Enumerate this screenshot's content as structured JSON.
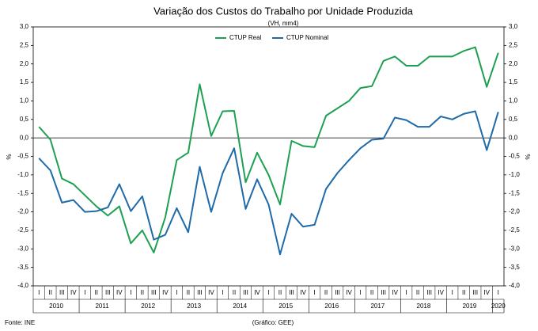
{
  "chart_data": {
    "type": "line",
    "title": "Variação dos Custos do Trabalho por Unidade Produzida",
    "subtitle": "(VH, mm4)",
    "y_label": "%",
    "y2_label": "%",
    "categories": [
      "I",
      "II",
      "III",
      "IV",
      "I",
      "II",
      "III",
      "IV",
      "I",
      "II",
      "III",
      "IV",
      "I",
      "II",
      "III",
      "IV",
      "I",
      "II",
      "III",
      "IV",
      "I",
      "II",
      "III",
      "IV",
      "I",
      "II",
      "III",
      "IV",
      "I",
      "II",
      "III",
      "IV",
      "I",
      "II",
      "III",
      "IV",
      "I",
      "II",
      "III",
      "IV",
      "I"
    ],
    "years": [
      "2010",
      "2011",
      "2012",
      "2013",
      "2014",
      "2015",
      "2016",
      "2017",
      "2018",
      "2019",
      "2020"
    ],
    "series": [
      {
        "name": "CTUP Real",
        "color": "#1ea052",
        "values": [
          0.3,
          -0.05,
          -1.1,
          -1.25,
          -1.55,
          -1.85,
          -2.1,
          -1.85,
          -2.85,
          -2.5,
          -3.1,
          -2.15,
          -0.6,
          -0.4,
          1.45,
          0.05,
          0.72,
          0.73,
          -1.2,
          -0.4,
          -1.0,
          -1.8,
          -0.08,
          -0.22,
          -0.25,
          0.6,
          0.8,
          1.0,
          1.35,
          1.4,
          2.08,
          2.2,
          1.95,
          1.95,
          2.2,
          2.2,
          2.2,
          2.35,
          2.45,
          1.38,
          2.3
        ]
      },
      {
        "name": "CTUP Nominal",
        "color": "#1f6aa8",
        "values": [
          -0.55,
          -0.88,
          -1.75,
          -1.68,
          -2.0,
          -1.98,
          -1.88,
          -1.25,
          -1.98,
          -1.58,
          -2.75,
          -2.62,
          -1.9,
          -2.55,
          -0.78,
          -2.0,
          -0.95,
          -0.28,
          -1.92,
          -1.12,
          -1.8,
          -3.15,
          -2.05,
          -2.4,
          -2.35,
          -1.38,
          -0.95,
          -0.6,
          -0.28,
          -0.05,
          -0.02,
          0.55,
          0.48,
          0.3,
          0.3,
          0.58,
          0.5,
          0.65,
          0.72,
          -0.33,
          0.7
        ]
      }
    ],
    "ylim": [
      -4,
      3
    ],
    "yticks": [
      {
        "value": 3,
        "label": "3,0"
      },
      {
        "value": 2.5,
        "label": "2,5"
      },
      {
        "value": 2,
        "label": "2,0"
      },
      {
        "value": 1.5,
        "label": "1,5"
      },
      {
        "value": 1,
        "label": "1,0"
      },
      {
        "value": 0.5,
        "label": "0,5"
      },
      {
        "value": 0,
        "label": "0,0"
      },
      {
        "value": -0.5,
        "label": "-0,5"
      },
      {
        "value": -1,
        "label": "-1,0"
      },
      {
        "value": -1.5,
        "label": "-1,5"
      },
      {
        "value": -2,
        "label": "-2,0"
      },
      {
        "value": -2.5,
        "label": "-2,5"
      },
      {
        "value": -3,
        "label": "-3,0"
      },
      {
        "value": -3.5,
        "label": "-3,5"
      },
      {
        "value": -4,
        "label": "-4,0"
      }
    ],
    "y2lim": [
      -4,
      3
    ],
    "y2ticks": [
      {
        "value": 3,
        "label": "3,0"
      },
      {
        "value": 2.5,
        "label": "2,5"
      },
      {
        "value": 2,
        "label": "2,0"
      },
      {
        "value": 1.5,
        "label": "1,5"
      },
      {
        "value": 1,
        "label": "1,0"
      },
      {
        "value": 0.5,
        "label": "0,5"
      },
      {
        "value": 0,
        "label": "0,0"
      },
      {
        "value": -0.5,
        "label": "-0,5"
      },
      {
        "value": -1,
        "label": "-1,0"
      },
      {
        "value": -1.5,
        "label": "-1,5"
      },
      {
        "value": -2,
        "label": "-2,0"
      },
      {
        "value": -2.5,
        "label": "-2,5"
      },
      {
        "value": -3,
        "label": "-3,0"
      },
      {
        "value": -3.5,
        "label": "-3,5"
      },
      {
        "value": -4,
        "label": "-4,0"
      }
    ],
    "legend": "top",
    "source": "Fonte: INE",
    "credit": "(Gráfico: GEE)"
  }
}
